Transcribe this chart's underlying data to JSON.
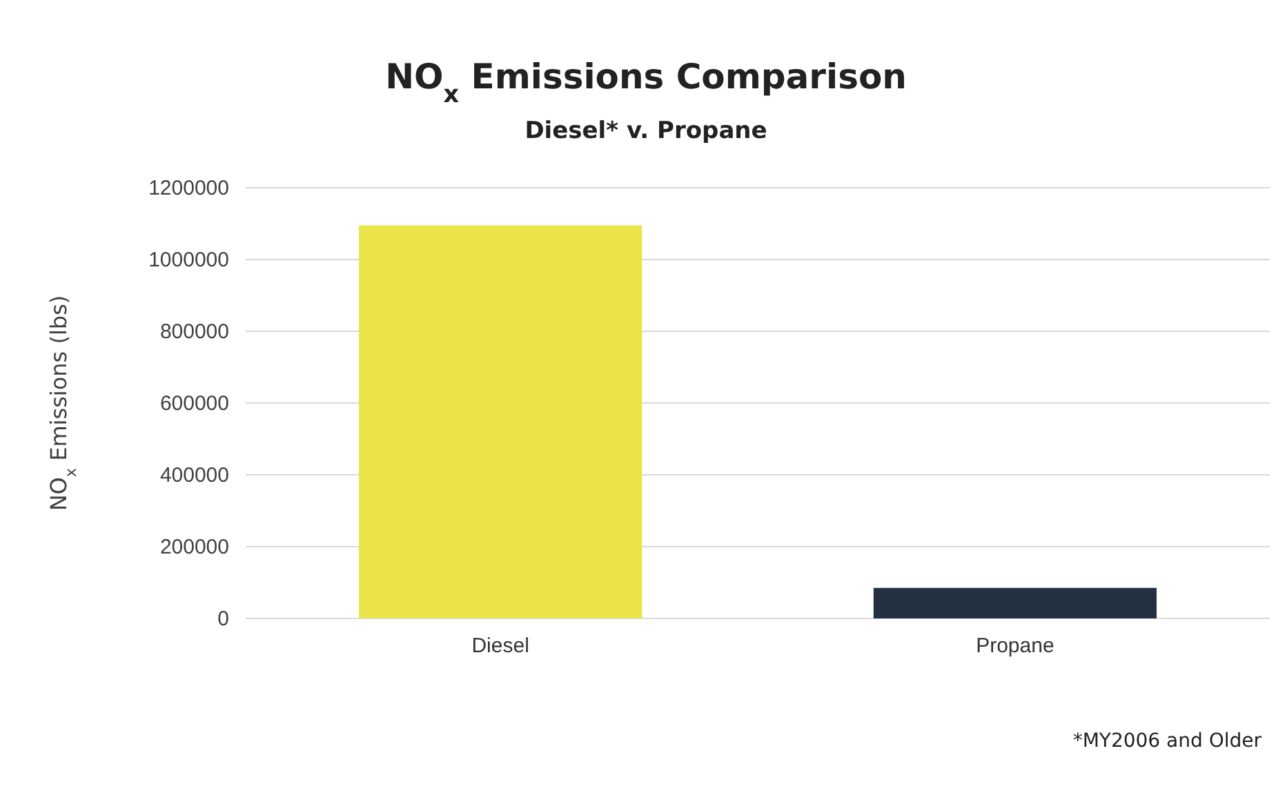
{
  "chart_data": {
    "type": "bar",
    "title": "NO$_{x}$ Emissions Comparison",
    "subtitle": "Diesel* v. Propane",
    "ylabel": "NO$_{x}$ Emissions (lbs)",
    "categories": [
      "Diesel",
      "Propane"
    ],
    "values": [
      1095000,
      85000
    ],
    "colors": [
      "#ebe34a",
      "#233042"
    ],
    "ylim": [
      0,
      1200000
    ],
    "yticks": [
      0,
      200000,
      400000,
      600000,
      800000,
      1000000,
      1200000
    ],
    "grid": "y",
    "annotations": [
      "*MY2006 and Older"
    ]
  }
}
